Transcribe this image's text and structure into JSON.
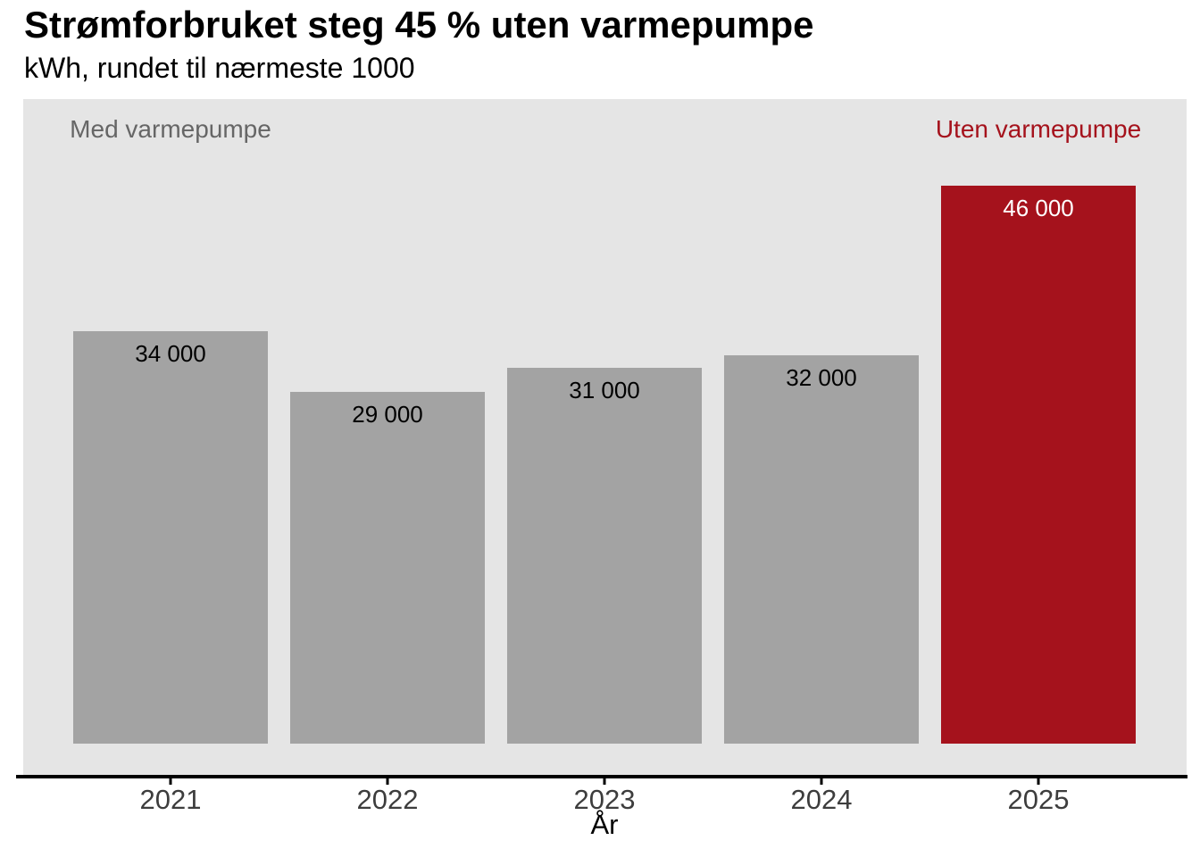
{
  "chart_data": {
    "type": "bar",
    "title": "Strømforbruket steg 45 % uten varmepumpe",
    "subtitle": "kWh, rundet til nærmeste 1000",
    "xlabel": "År",
    "ylabel": "",
    "categories": [
      "2021",
      "2022",
      "2023",
      "2024",
      "2025"
    ],
    "values": [
      34000,
      29000,
      31000,
      32000,
      46000
    ],
    "value_labels": [
      "34 000",
      "29 000",
      "31 000",
      "32 000",
      "46 000"
    ],
    "ylim": [
      0,
      46000
    ],
    "grid": false,
    "legend_position": "none",
    "highlight_index": 4,
    "annotations": [
      {
        "text": "Med varmepumpe",
        "over_category": "2021",
        "color_role": "gray"
      },
      {
        "text": "Uten varmepumpe",
        "over_category": "2025",
        "color_role": "red"
      }
    ],
    "colors": {
      "bar_gray": "#A3A3A3",
      "bar_red": "#A5121C",
      "panel_background": "#E5E5E5",
      "axis_line": "#000000",
      "axis_text": "#3D3D3D",
      "annotation_gray": "#666666",
      "annotation_red": "#A5121C",
      "value_label_on_gray": "#000000",
      "value_label_on_red": "#FFFFFF"
    }
  }
}
